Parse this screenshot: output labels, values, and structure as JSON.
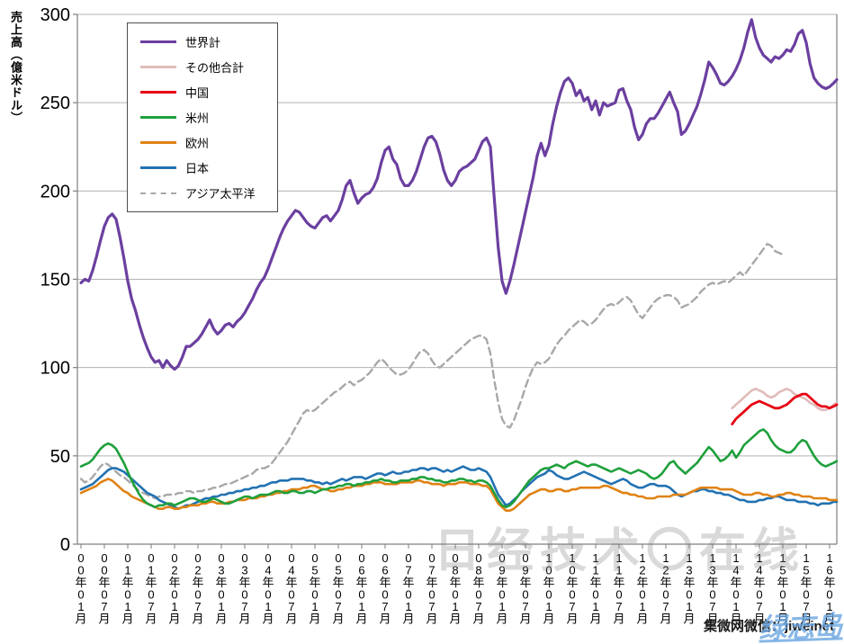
{
  "y_axis": {
    "label": "売上高（億米ドル）",
    "ticks": [
      0,
      50,
      100,
      150,
      200,
      250,
      300
    ]
  },
  "watermarks": {
    "center": "日经技术〇在线",
    "bottom_right": "集微网微信：jiweinet",
    "blue_script": "绿志岛"
  },
  "colors": {
    "grid": "#b3b3b3",
    "axis": "#7f7f7f",
    "tick_label": "#000000"
  },
  "chart_data": {
    "type": "line",
    "title": "",
    "xlabel": "",
    "ylabel": "売上高（億米ドル）",
    "ylim": [
      0,
      300
    ],
    "grid": true,
    "legend_position": "upper-left-box",
    "x_start": "2000-01",
    "x_step": "1 month",
    "x_months_total": 195,
    "x_tick_every_months": 6,
    "x_tick_labels": [
      "00年01月",
      "00年07月",
      "01年01月",
      "01年07月",
      "02年01月",
      "02年07月",
      "03年01月",
      "03年07月",
      "04年01月",
      "04年07月",
      "05年01月",
      "05年07月",
      "06年01月",
      "06年07月",
      "07年01月",
      "07年07月",
      "08年01月",
      "08年07月",
      "09年01月",
      "09年07月",
      "10年01月",
      "10年07月",
      "11年01月",
      "11年07月",
      "12年01月",
      "12年07月",
      "13年01月",
      "13年07月",
      "14年01月",
      "14年07月",
      "15年01月",
      "15年07月",
      "16年01月"
    ],
    "draw_order": [
      6,
      5,
      4,
      3,
      1,
      2,
      0
    ],
    "series": [
      {
        "name": "世界計",
        "color": "#6b3fa0",
        "style": "solid",
        "width": 3.2,
        "start_month_index": 0,
        "values": [
          148,
          150,
          149,
          155,
          163,
          172,
          180,
          185,
          187,
          184,
          174,
          162,
          149,
          139,
          132,
          124,
          117,
          111,
          106,
          103,
          104,
          100,
          104,
          101,
          99,
          101,
          106,
          112,
          112,
          114,
          116,
          119,
          123,
          127,
          122,
          119,
          121,
          124,
          125,
          123,
          126,
          128,
          131,
          135,
          139,
          144,
          148,
          151,
          156,
          162,
          168,
          174,
          179,
          183,
          186,
          189,
          188,
          185,
          182,
          180,
          179,
          182,
          185,
          186,
          183,
          186,
          189,
          195,
          203,
          206,
          199,
          193,
          196,
          198,
          199,
          202,
          207,
          216,
          223,
          225,
          218,
          215,
          207,
          203,
          203,
          206,
          211,
          218,
          225,
          230,
          231,
          228,
          221,
          212,
          206,
          203,
          206,
          211,
          213,
          214,
          216,
          218,
          223,
          228,
          230,
          225,
          196,
          168,
          149,
          142,
          149,
          158,
          168,
          178,
          188,
          198,
          208,
          220,
          227,
          220,
          226,
          238,
          248,
          256,
          262,
          264,
          261,
          254,
          257,
          251,
          253,
          246,
          251,
          243,
          250,
          248,
          249,
          250,
          257,
          258,
          251,
          246,
          236,
          229,
          232,
          238,
          241,
          241,
          244,
          248,
          252,
          256,
          250,
          245,
          232,
          234,
          238,
          243,
          248,
          255,
          263,
          273,
          270,
          266,
          261,
          260,
          262,
          265,
          269,
          274,
          281,
          290,
          297,
          287,
          281,
          277,
          275,
          273,
          276,
          275,
          277,
          280,
          279,
          283,
          289,
          291,
          284,
          272,
          264,
          261,
          259,
          258,
          259,
          261,
          263
        ]
      },
      {
        "name": "その他合計",
        "color": "#e0bcba",
        "style": "solid",
        "width": 2.6,
        "start_month_index": 167,
        "values": [
          77,
          79,
          81,
          83,
          85,
          87,
          88,
          87,
          86,
          84,
          83,
          84,
          86,
          87,
          88,
          87,
          85,
          84,
          83,
          82,
          80,
          79,
          77,
          76,
          76,
          77,
          79,
          80
        ]
      },
      {
        "name": "中国",
        "color": "#e60012",
        "style": "solid",
        "width": 2.8,
        "start_month_index": 167,
        "values": [
          68,
          71,
          73,
          75,
          77,
          79,
          80,
          81,
          80,
          79,
          78,
          77,
          77,
          78,
          79,
          81,
          83,
          84,
          85,
          85,
          83,
          81,
          79,
          78,
          78,
          77,
          78,
          79
        ]
      },
      {
        "name": "米州",
        "color": "#1fa03c",
        "style": "solid",
        "width": 2.6,
        "start_month_index": 0,
        "values": [
          44,
          45,
          46,
          48,
          51,
          54,
          56,
          57,
          56,
          54,
          50,
          46,
          41,
          36,
          32,
          28,
          25,
          23,
          22,
          21,
          22,
          22,
          23,
          23,
          22,
          23,
          24,
          25,
          26,
          26,
          25,
          24,
          24,
          25,
          26,
          25,
          24,
          23,
          23,
          24,
          25,
          26,
          27,
          27,
          26,
          27,
          28,
          28,
          28,
          29,
          30,
          30,
          29,
          29,
          30,
          30,
          29,
          29,
          30,
          30,
          29,
          30,
          31,
          31,
          32,
          32,
          33,
          33,
          34,
          34,
          33,
          34,
          34,
          35,
          35,
          36,
          36,
          37,
          36,
          36,
          35,
          35,
          36,
          36,
          36,
          37,
          37,
          38,
          38,
          37,
          37,
          36,
          36,
          35,
          35,
          36,
          36,
          37,
          37,
          36,
          36,
          35,
          36,
          36,
          35,
          33,
          29,
          25,
          22,
          21,
          22,
          24,
          27,
          30,
          33,
          36,
          38,
          40,
          42,
          43,
          43,
          44,
          45,
          44,
          43,
          45,
          46,
          47,
          46,
          45,
          44,
          45,
          45,
          44,
          43,
          42,
          41,
          42,
          43,
          42,
          41,
          40,
          41,
          42,
          41,
          40,
          38,
          37,
          38,
          40,
          43,
          46,
          47,
          44,
          42,
          40,
          42,
          44,
          46,
          49,
          52,
          55,
          53,
          50,
          47,
          48,
          50,
          53,
          49,
          52,
          56,
          58,
          60,
          62,
          64,
          65,
          63,
          59,
          56,
          54,
          53,
          52,
          52,
          54,
          57,
          59,
          58,
          54,
          50,
          47,
          45,
          44,
          45,
          46,
          47
        ]
      },
      {
        "name": "欧州",
        "color": "#e08214",
        "style": "solid",
        "width": 2.6,
        "start_month_index": 0,
        "values": [
          29,
          30,
          31,
          32,
          33,
          35,
          36,
          37,
          36,
          34,
          32,
          30,
          29,
          27,
          26,
          25,
          24,
          23,
          22,
          21,
          20,
          20,
          21,
          21,
          20,
          20,
          21,
          21,
          22,
          22,
          22,
          23,
          23,
          24,
          24,
          23,
          23,
          23,
          24,
          24,
          25,
          25,
          25,
          26,
          26,
          26,
          27,
          27,
          28,
          28,
          29,
          29,
          30,
          30,
          31,
          31,
          31,
          32,
          32,
          33,
          33,
          32,
          31,
          31,
          30,
          30,
          31,
          31,
          32,
          32,
          33,
          33,
          33,
          34,
          34,
          35,
          35,
          35,
          34,
          34,
          34,
          34,
          35,
          35,
          35,
          35,
          36,
          36,
          35,
          35,
          34,
          34,
          34,
          33,
          34,
          34,
          34,
          35,
          35,
          35,
          34,
          34,
          34,
          33,
          33,
          31,
          27,
          23,
          21,
          19,
          19,
          20,
          22,
          24,
          26,
          28,
          29,
          30,
          31,
          31,
          30,
          30,
          31,
          31,
          30,
          30,
          31,
          31,
          32,
          32,
          32,
          32,
          32,
          32,
          33,
          33,
          32,
          31,
          30,
          29,
          29,
          28,
          28,
          27,
          27,
          26,
          26,
          26,
          27,
          27,
          27,
          27,
          28,
          28,
          28,
          28,
          29,
          30,
          31,
          32,
          32,
          32,
          32,
          32,
          31,
          31,
          31,
          31,
          30,
          29,
          28,
          28,
          28,
          29,
          29,
          28,
          28,
          27,
          27,
          28,
          28,
          29,
          29,
          28,
          28,
          27,
          27,
          27,
          26,
          26,
          26,
          26,
          25,
          25,
          25
        ]
      },
      {
        "name": "日本",
        "color": "#2272b2",
        "style": "solid",
        "width": 2.6,
        "start_month_index": 0,
        "values": [
          31,
          32,
          33,
          34,
          36,
          38,
          40,
          42,
          43,
          43,
          42,
          41,
          39,
          37,
          35,
          33,
          31,
          29,
          28,
          27,
          25,
          24,
          23,
          22,
          21,
          20,
          21,
          22,
          22,
          23,
          24,
          25,
          26,
          26,
          27,
          27,
          28,
          28,
          29,
          29,
          30,
          30,
          31,
          31,
          32,
          32,
          33,
          33,
          34,
          35,
          35,
          36,
          36,
          36,
          37,
          37,
          37,
          37,
          36,
          36,
          35,
          35,
          34,
          35,
          34,
          35,
          36,
          37,
          36,
          37,
          38,
          38,
          38,
          37,
          38,
          39,
          40,
          40,
          39,
          40,
          41,
          40,
          40,
          41,
          41,
          42,
          42,
          43,
          43,
          42,
          43,
          43,
          42,
          41,
          42,
          41,
          42,
          43,
          44,
          43,
          42,
          42,
          43,
          42,
          41,
          38,
          33,
          28,
          25,
          22,
          23,
          25,
          27,
          30,
          32,
          34,
          36,
          38,
          39,
          40,
          42,
          41,
          39,
          38,
          37,
          37,
          38,
          39,
          40,
          41,
          40,
          39,
          38,
          37,
          36,
          35,
          34,
          35,
          36,
          37,
          36,
          34,
          33,
          32,
          32,
          33,
          34,
          34,
          33,
          33,
          33,
          32,
          30,
          28,
          27,
          28,
          29,
          30,
          30,
          31,
          31,
          30,
          30,
          29,
          29,
          28,
          28,
          27,
          26,
          25,
          25,
          24,
          24,
          24,
          25,
          25,
          26,
          26,
          27,
          27,
          26,
          25,
          25,
          25,
          24,
          24,
          24,
          23,
          23,
          22,
          23,
          23,
          23,
          24,
          24
        ]
      },
      {
        "name": "アジア太平洋",
        "color": "#a8a8a8",
        "style": "dashed",
        "width": 2.4,
        "start_month_index": 0,
        "values": [
          37,
          35,
          36,
          38,
          41,
          44,
          46,
          45,
          43,
          41,
          39,
          38,
          36,
          34,
          32,
          30,
          29,
          28,
          27,
          26,
          27,
          27,
          28,
          28,
          28,
          29,
          29,
          30,
          30,
          29,
          30,
          30,
          31,
          31,
          32,
          32,
          33,
          34,
          34,
          35,
          36,
          37,
          38,
          39,
          40,
          42,
          43,
          43,
          44,
          46,
          49,
          52,
          55,
          58,
          62,
          66,
          70,
          74,
          76,
          75,
          76,
          78,
          80,
          82,
          84,
          86,
          87,
          89,
          91,
          92,
          90,
          92,
          93,
          95,
          97,
          100,
          103,
          105,
          103,
          100,
          98,
          96,
          96,
          97,
          99,
          102,
          106,
          109,
          110,
          108,
          104,
          101,
          100,
          102,
          104,
          106,
          108,
          110,
          112,
          114,
          116,
          117,
          118,
          118,
          116,
          108,
          93,
          80,
          71,
          67,
          66,
          70,
          76,
          82,
          89,
          95,
          100,
          103,
          102,
          103,
          105,
          109,
          113,
          116,
          118,
          121,
          123,
          125,
          127,
          126,
          124,
          125,
          127,
          130,
          133,
          135,
          136,
          135,
          137,
          139,
          140,
          138,
          134,
          130,
          128,
          131,
          134,
          137,
          139,
          140,
          141,
          141,
          140,
          138,
          134,
          135,
          136,
          138,
          140,
          143,
          145,
          147,
          148,
          147,
          148,
          149,
          148,
          150,
          152,
          154,
          152,
          155,
          158,
          161,
          164,
          167,
          170,
          169,
          166,
          165,
          164
        ]
      }
    ]
  }
}
